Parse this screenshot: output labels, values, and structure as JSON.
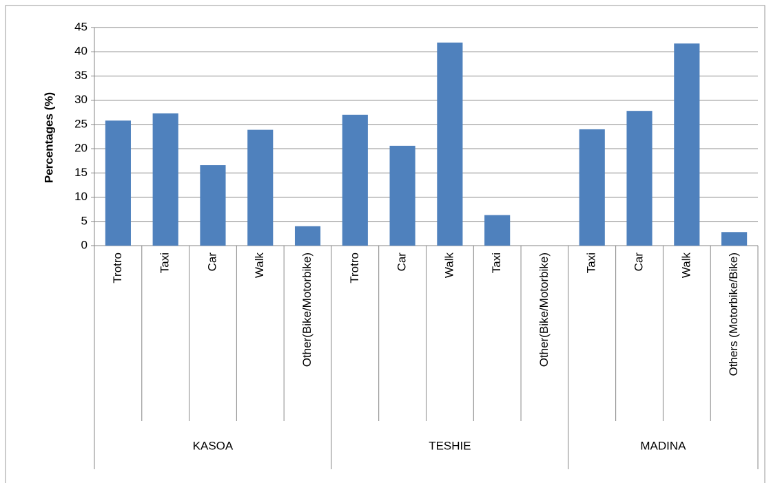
{
  "chart_data": {
    "type": "bar",
    "y_label": "Percentages (%)",
    "groups": [
      {
        "name": "KASOA",
        "categories": [
          "Trotro",
          "Taxi",
          "Car",
          "Walk",
          "Other(Bike/Motorbike)"
        ],
        "values": [
          25.8,
          27.3,
          16.6,
          23.9,
          4.0
        ]
      },
      {
        "name": "TESHIE",
        "categories": [
          "Trotro",
          "Car",
          "Walk",
          "Taxi",
          "Other(Bike/Motorbike)"
        ],
        "values": [
          27.0,
          20.6,
          41.9,
          6.3,
          0
        ]
      },
      {
        "name": "MADINA",
        "categories": [
          "Taxi",
          "Car",
          "Walk",
          "Others (Motorbike/Bike)"
        ],
        "values": [
          24.0,
          27.8,
          41.7,
          2.8
        ]
      }
    ],
    "color": "#4f81bd",
    "ylim": [
      0,
      45
    ],
    "yticks": [
      0,
      5,
      10,
      15,
      20,
      25,
      30,
      35,
      40,
      45
    ],
    "grid": true
  }
}
